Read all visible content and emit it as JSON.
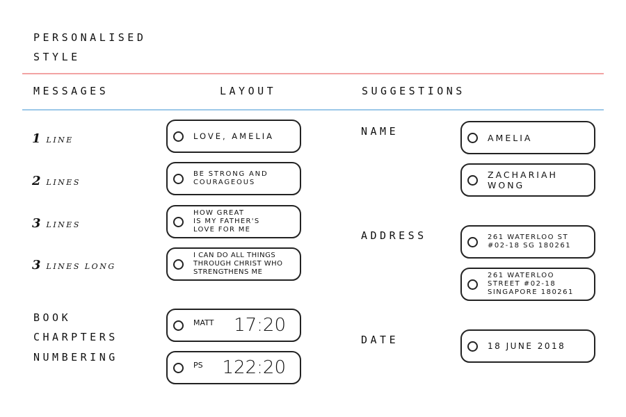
{
  "title": {
    "line1": "PERSONALISED",
    "line2": "STYLE"
  },
  "columns": {
    "messages": "MESSAGES",
    "layout": "LAYOUT",
    "suggestions": "SUGGESTIONS"
  },
  "colors": {
    "top_rule": "#f2a3a3",
    "header_rule": "#9cc8e8"
  },
  "messages": [
    {
      "num": "1",
      "label": "LINE",
      "text": "LOVE, AMELIA"
    },
    {
      "num": "2",
      "label": "LINES",
      "text": "BE STRONG AND\nCOURAGEOUS"
    },
    {
      "num": "3",
      "label": "LINES",
      "text": "HOW GREAT\nIS MY FATHER'S\nLOVE FOR ME"
    },
    {
      "num": "3",
      "label": "LINES LONG",
      "text": "I CAN DO ALL THINGS\nTHROUGH CHRIST WHO\nSTRENGTHENS ME"
    }
  ],
  "book": {
    "label1": "BOOK",
    "label2": "CHARPTERS",
    "label3": "NUMBERING",
    "options": [
      {
        "abbr": "MATT",
        "ref": "17:20"
      },
      {
        "abbr": "PS",
        "ref": "122:20"
      }
    ]
  },
  "suggestions": {
    "name": {
      "label": "NAME",
      "options": [
        "AMELIA",
        "ZACHARIAH\nWONG"
      ]
    },
    "address": {
      "label": "ADDRESS",
      "options": [
        "261 WATERLOO ST\n#02-18 SG 180261",
        "261 WATERLOO\nSTREET #02-18\nSINGAPORE 180261"
      ]
    },
    "date": {
      "label": "DATE",
      "options": [
        "18 JUNE 2018"
      ]
    }
  },
  "icons": {
    "option_marker": "radio-circle-icon"
  }
}
